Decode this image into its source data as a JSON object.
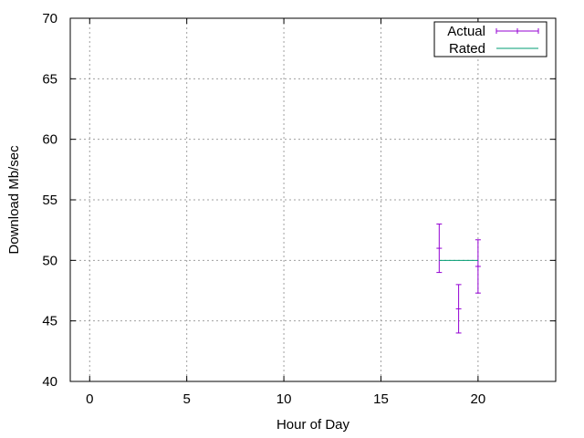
{
  "chart_data": {
    "type": "scatter",
    "title": "",
    "xlabel": "Hour of Day",
    "ylabel": "Download Mb/sec",
    "xlim": [
      -1,
      24
    ],
    "ylim": [
      40,
      70
    ],
    "xticks": [
      0,
      5,
      10,
      15,
      20
    ],
    "yticks": [
      40,
      45,
      50,
      55,
      60,
      65,
      70
    ],
    "grid": true,
    "legend": "top-right",
    "series": [
      {
        "name": "Actual",
        "style": "errorbars",
        "color": "#9400d3",
        "points": [
          {
            "x": 18,
            "y": 51.0,
            "low": 49.0,
            "high": 53.0
          },
          {
            "x": 19,
            "y": 46.0,
            "low": 44.0,
            "high": 48.0
          },
          {
            "x": 20,
            "y": 49.5,
            "low": 47.3,
            "high": 51.7
          }
        ]
      },
      {
        "name": "Rated",
        "style": "line",
        "color": "#009e73",
        "points": [
          {
            "x": 18,
            "y": 50
          },
          {
            "x": 20,
            "y": 50
          }
        ]
      }
    ]
  }
}
